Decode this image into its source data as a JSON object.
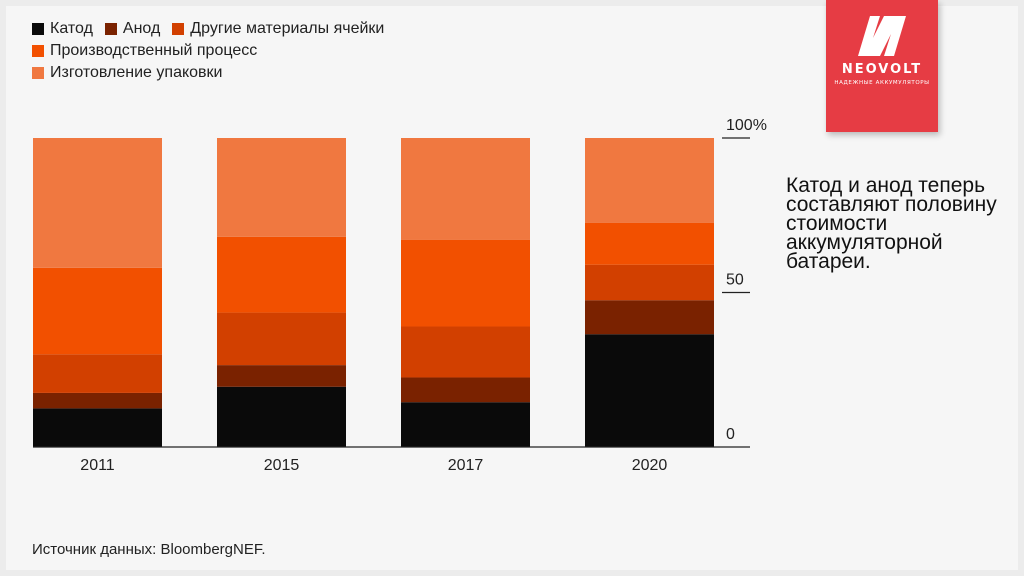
{
  "logo": {
    "name": "NEOVOLT",
    "tagline": "НАДЕЖНЫЕ АККУМУЛЯТОРЫ",
    "color": "#e63c44"
  },
  "note": "Катод и анод теперь составляют половину стоимости аккумуляторной батареи.",
  "source": "Источник данных: BloombergNEF.",
  "chart_data": {
    "type": "bar",
    "stacked": true,
    "categories": [
      "2011",
      "2015",
      "2017",
      "2020"
    ],
    "series": [
      {
        "name": "Катод",
        "color": "#0a0a0a",
        "values": [
          12.5,
          19.5,
          14.5,
          36.5
        ]
      },
      {
        "name": "Анод",
        "color": "#7a2200",
        "values": [
          5,
          7,
          8,
          11
        ]
      },
      {
        "name": "Другие материалы ячейки",
        "color": "#d24000",
        "values": [
          12.5,
          17,
          16.5,
          11.5
        ]
      },
      {
        "name": "Производственный процесс",
        "color": "#f25000",
        "values": [
          28,
          24.5,
          28,
          13.5
        ]
      },
      {
        "name": "Изготовление упаковки",
        "color": "#f07840",
        "values": [
          42,
          32,
          33,
          27.5
        ]
      }
    ],
    "ylim": [
      0,
      100
    ],
    "yticks": [
      "0",
      "50",
      "100%"
    ],
    "title": "",
    "xlabel": "",
    "ylabel": ""
  }
}
